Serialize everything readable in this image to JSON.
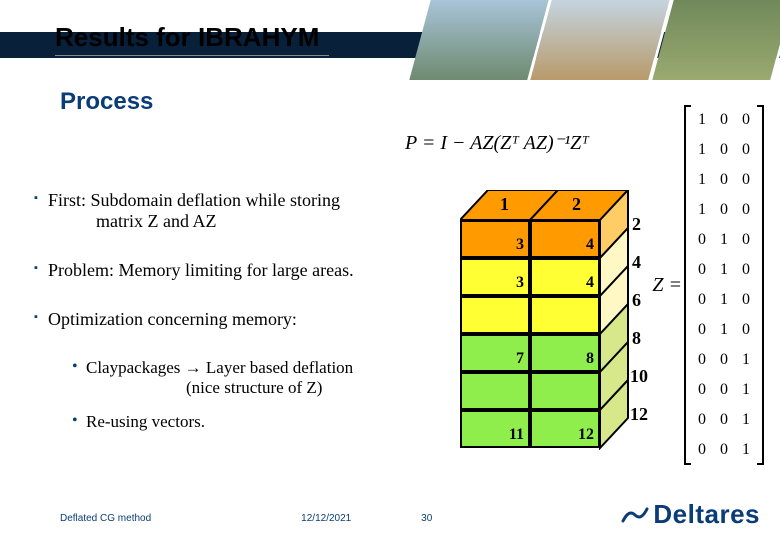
{
  "title": "Results for IBRAHYM",
  "subtitle": "Process",
  "formula": "P = I − AZ(Zᵀ AZ)⁻¹Zᵀ",
  "bullets": {
    "b1_prefix": "First:",
    "b1_rest": "  Subdomain deflation while storing",
    "b1_line2": "matrix Z and AZ",
    "b2": "Problem: Memory limiting for large areas.",
    "b3": "Optimization concerning memory:",
    "s1a": "Claypackages → Layer based deflation",
    "s1b": "(nice structure of Z)",
    "s2": "Re-using vectors."
  },
  "cube": {
    "top_labels": [
      "1",
      "2"
    ],
    "front_labels": [
      "3",
      "4",
      "3",
      "4",
      "7",
      "8",
      "11",
      "12"
    ],
    "side_labels": [
      "2",
      "4",
      "6",
      "8",
      "10",
      "12"
    ],
    "colors": {
      "orange": "#ff9a00",
      "yellow": "#ffff33",
      "green": "#90ee4c",
      "pale": "#fff8c4",
      "side_top": "#ffcc66",
      "side_mid": "#d6e88a"
    }
  },
  "zmatrix": {
    "label": "Z =",
    "rows": [
      [
        "1",
        "0",
        "0"
      ],
      [
        "1",
        "0",
        "0"
      ],
      [
        "1",
        "0",
        "0"
      ],
      [
        "1",
        "0",
        "0"
      ],
      [
        "0",
        "1",
        "0"
      ],
      [
        "0",
        "1",
        "0"
      ],
      [
        "0",
        "1",
        "0"
      ],
      [
        "0",
        "1",
        "0"
      ],
      [
        "0",
        "0",
        "1"
      ],
      [
        "0",
        "0",
        "1"
      ],
      [
        "0",
        "0",
        "1"
      ],
      [
        "0",
        "0",
        "1"
      ]
    ]
  },
  "footer": {
    "left": "Deflated CG method",
    "date": "12/12/2021",
    "page": "30",
    "logo": "Deltares"
  }
}
